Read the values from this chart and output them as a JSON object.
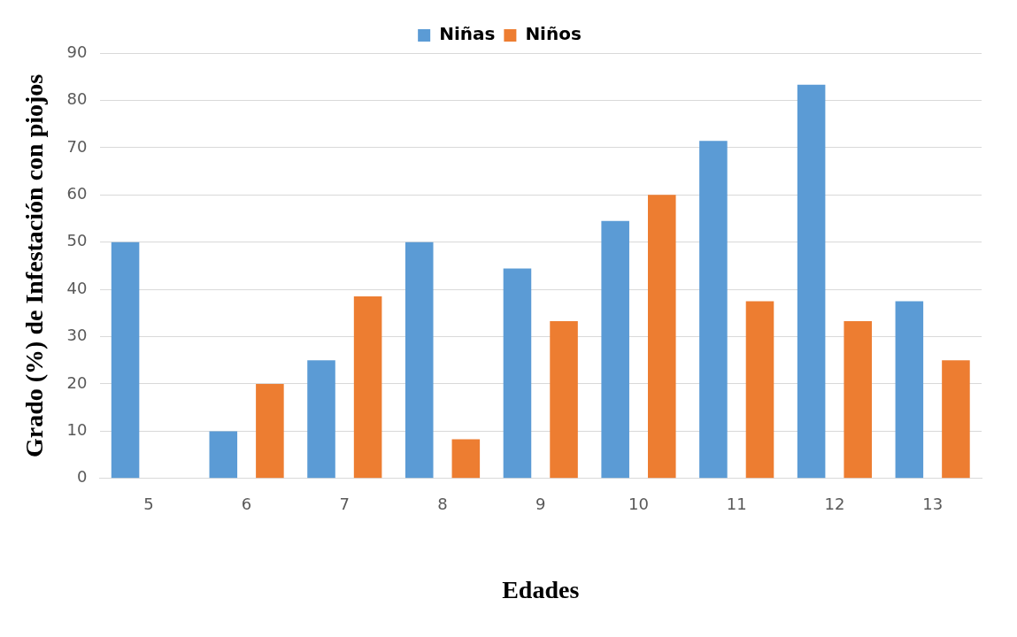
{
  "chart_data": {
    "type": "bar",
    "xlabel": "Edades",
    "ylabel": "Grado (%) de Infestación con piojos",
    "categories": [
      "5",
      "6",
      "7",
      "8",
      "9",
      "10",
      "11",
      "12",
      "13"
    ],
    "series": [
      {
        "name": "Niñas",
        "color": "#5b9bd5",
        "values": [
          50,
          10,
          25,
          50,
          44.4,
          54.5,
          71.4,
          83.3,
          37.5
        ]
      },
      {
        "name": "Niños",
        "color": "#ed7d31",
        "values": [
          0,
          20,
          38.5,
          8.3,
          33.3,
          60,
          37.5,
          33.3,
          25
        ]
      }
    ],
    "ylim": [
      0,
      90
    ],
    "yticks": [
      0,
      10,
      20,
      30,
      40,
      50,
      60,
      70,
      80,
      90
    ],
    "grid": "y",
    "legend": "top"
  }
}
